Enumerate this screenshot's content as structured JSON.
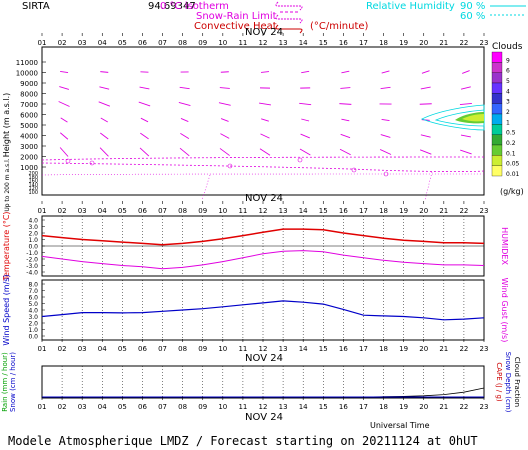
{
  "header": {
    "site": "SIRTA",
    "coord": "94.69347",
    "isotherm_label": "0 °C isotherm",
    "snow_rain_label": "Snow-Rain Limit",
    "convective_label": "Convective Heat",
    "convective_unit": "(°C/minute)",
    "rh_label": "Relative Humidity",
    "rh_90": "90 %",
    "rh_60": "60 %"
  },
  "date_label": "NOV 24",
  "hours": [
    "01",
    "02",
    "03",
    "04",
    "05",
    "06",
    "07",
    "08",
    "09",
    "10",
    "11",
    "12",
    "13",
    "14",
    "15",
    "16",
    "17",
    "18",
    "19",
    "20",
    "21",
    "22",
    "23"
  ],
  "colors": {
    "magenta": "#e000e0",
    "red": "#e00000",
    "blue": "#0000c8",
    "cyan": "#00d8e0",
    "dark_red": "#cc0000",
    "green_label": "#00a000"
  },
  "panel_height": {
    "ylabel": "Height  (m a.s.l.)",
    "ylabel2": "Up to 200 m a.s.l.",
    "ticks_upper": [
      "11000",
      "10000",
      "9000",
      "8000",
      "7000",
      "6000",
      "5000",
      "4000",
      "3000",
      "2000",
      "1000"
    ],
    "ticks_lower": [
      "200",
      "180",
      "160",
      "140",
      "120",
      "100"
    ]
  },
  "clouds_legend": {
    "title": "Clouds",
    "unit": "(g/kg)",
    "labels": [
      "9",
      "6",
      "5",
      "4",
      "3",
      "2",
      "1",
      "0.5",
      "0.2",
      "0.1",
      "0.05",
      "0.01"
    ],
    "colors": [
      "#ff00ff",
      "#cc33cc",
      "#9933cc",
      "#6633ff",
      "#3333cc",
      "#3366ff",
      "#00aaee",
      "#00cc99",
      "#33aa33",
      "#66cc33",
      "#ccee33",
      "#ffff66"
    ]
  },
  "panel_temp": {
    "ylabel": "Temperature (°C)",
    "ylabel_right": "HUMIDEX",
    "ticks": [
      "4.0",
      "3.0",
      "2.0",
      "1.0",
      "0.0",
      "-1.0",
      "-2.0",
      "-3.0",
      "-4.0"
    ]
  },
  "panel_wind": {
    "ylabel": "Wind Speed (m/s)",
    "ylabel_right": "Wind Gust (m/s)",
    "ticks": [
      "8.0",
      "7.0",
      "6.0",
      "5.0",
      "4.0",
      "3.0",
      "2.0",
      "1.0",
      "0.0"
    ]
  },
  "panel_rain": {
    "ylabel_rain": "Rain (mm / hour)",
    "ylabel_snow": "Snow (cm / hour)",
    "ylabel_cape": "CAPE (J / g)",
    "ylabel_snowdepth": "Snow Depth (cm)",
    "ylabel_cloudfrac": "Cloud Fraction",
    "universal_time": "Universal Time"
  },
  "footer": "Modele Atmospherique LMDZ / Forecast starting on 20211124 at 0hUT",
  "chart_data": [
    {
      "type": "line",
      "name": "temperature",
      "x": [
        "01",
        "02",
        "03",
        "04",
        "05",
        "06",
        "07",
        "08",
        "09",
        "10",
        "11",
        "12",
        "13",
        "14",
        "15",
        "16",
        "17",
        "18",
        "19",
        "20",
        "21",
        "22",
        "23"
      ],
      "series": [
        {
          "values": [
            1.6,
            1.3,
            1.0,
            0.8,
            0.6,
            0.4,
            0.2,
            0.4,
            0.7,
            1.1,
            1.6,
            2.1,
            2.6,
            2.6,
            2.5,
            2.0,
            1.6,
            1.2,
            0.9,
            0.7,
            0.5,
            0.5,
            0.4
          ]
        },
        {
          "values": [
            -1.6,
            -2.0,
            -2.4,
            -2.7,
            -3.0,
            -3.2,
            -3.5,
            -3.3,
            -2.9,
            -2.4,
            -1.8,
            -1.2,
            -0.8,
            -0.7,
            -0.9,
            -1.4,
            -1.8,
            -2.2,
            -2.5,
            -2.7,
            -2.9,
            -2.9,
            -3.0
          ]
        }
      ],
      "ylim": [
        -4,
        4
      ]
    },
    {
      "type": "line",
      "name": "wind",
      "x": [
        "01",
        "02",
        "03",
        "04",
        "05",
        "06",
        "07",
        "08",
        "09",
        "10",
        "11",
        "12",
        "13",
        "14",
        "15",
        "16",
        "17",
        "18",
        "19",
        "20",
        "21",
        "22",
        "23"
      ],
      "series": [
        {
          "values": [
            3.0,
            3.3,
            3.6,
            3.6,
            3.55,
            3.6,
            3.8,
            4.0,
            4.2,
            4.5,
            4.8,
            5.1,
            5.4,
            5.2,
            4.9,
            4.1,
            3.2,
            3.1,
            3.0,
            2.8,
            2.5,
            2.6,
            2.8
          ]
        }
      ],
      "ylim": [
        0,
        8
      ]
    },
    {
      "type": "line",
      "name": "cloud_fraction",
      "x": [
        "01",
        "02",
        "03",
        "04",
        "05",
        "06",
        "07",
        "08",
        "09",
        "10",
        "11",
        "12",
        "13",
        "14",
        "15",
        "16",
        "17",
        "18",
        "19",
        "20",
        "21",
        "22",
        "23"
      ],
      "series": [
        {
          "values": [
            0,
            0,
            0,
            0,
            0,
            0,
            0,
            0,
            0,
            0,
            0,
            0,
            0,
            0,
            0,
            0,
            0,
            0.01,
            0.02,
            0.04,
            0.08,
            0.16,
            0.3
          ]
        }
      ]
    }
  ]
}
